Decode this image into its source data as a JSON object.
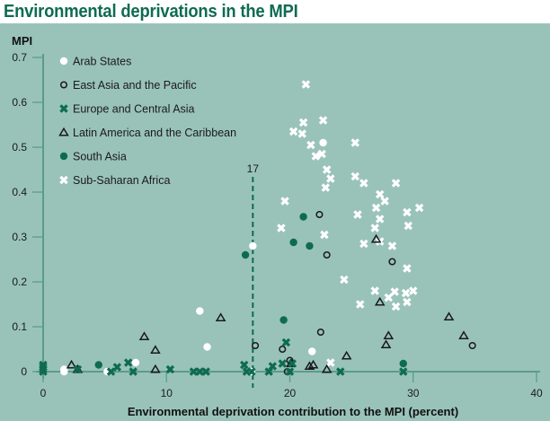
{
  "chart_data": {
    "type": "scatter",
    "title": "Environmental deprivations in the MPI",
    "xlabel": "Environmental deprivation contribution to the MPI (percent)",
    "ylabel": "MPI",
    "xlim": [
      0,
      40
    ],
    "ylim": [
      0,
      0.7
    ],
    "xticks": [
      "0",
      "10",
      "20",
      "30",
      "40"
    ],
    "xtick_values": [
      0,
      10,
      20,
      30,
      40
    ],
    "yticks": [
      "0",
      "0.1",
      "0.2",
      "0.3",
      "0.4",
      "0.5",
      "0.6",
      "0.7"
    ],
    "ytick_values": [
      0,
      0.1,
      0.2,
      0.3,
      0.4,
      0.5,
      0.6,
      0.7
    ],
    "grid": false,
    "legend_position": "top-left",
    "reference_line": {
      "x": 17,
      "label": "17",
      "style": "dashed"
    },
    "colors": {
      "panel": "#99c3b9",
      "axis": "#5c9c89",
      "green": "#0e6b52",
      "white": "#ffffff",
      "dark": "#1a1a1a",
      "title": "#0e6b52"
    },
    "series": [
      {
        "name": "Arab States",
        "marker": "filled-circle-white",
        "points": [
          [
            1.7,
            0.0
          ],
          [
            1.7,
            0.005
          ],
          [
            5.2,
            0.0
          ],
          [
            7.5,
            0.02
          ],
          [
            12.7,
            0.135
          ],
          [
            13.3,
            0.055
          ],
          [
            17.0,
            0.28
          ],
          [
            16.9,
            0.0
          ],
          [
            21.8,
            0.045
          ],
          [
            22.7,
            0.51
          ]
        ]
      },
      {
        "name": "East Asia and the Pacific",
        "marker": "open-circle",
        "points": [
          [
            17.2,
            0.058
          ],
          [
            19.4,
            0.05
          ],
          [
            19.8,
            0.0
          ],
          [
            20.0,
            0.025
          ],
          [
            22.5,
            0.088
          ],
          [
            22.4,
            0.35
          ],
          [
            23.0,
            0.26
          ],
          [
            28.3,
            0.245
          ],
          [
            34.8,
            0.058
          ]
        ]
      },
      {
        "name": "Europe and Central Asia",
        "marker": "x-green",
        "points": [
          [
            0.0,
            0.0
          ],
          [
            0.0,
            0.005
          ],
          [
            0.0,
            0.01
          ],
          [
            0.0,
            0.015
          ],
          [
            2.8,
            0.005
          ],
          [
            6.0,
            0.01
          ],
          [
            5.5,
            0.0
          ],
          [
            6.9,
            0.02
          ],
          [
            7.3,
            0.0
          ],
          [
            10.3,
            0.005
          ],
          [
            12.2,
            0.0
          ],
          [
            12.7,
            0.0
          ],
          [
            13.2,
            0.0
          ],
          [
            16.3,
            0.015
          ],
          [
            16.5,
            0.0
          ],
          [
            16.9,
            0.0
          ],
          [
            18.6,
            0.012
          ],
          [
            18.3,
            0.0
          ],
          [
            19.7,
            0.065
          ],
          [
            20.0,
            0.0
          ],
          [
            19.4,
            0.018
          ],
          [
            20.2,
            0.018
          ],
          [
            24.1,
            0.0
          ],
          [
            29.2,
            0.0
          ]
        ]
      },
      {
        "name": "Latin America and the Caribbean",
        "marker": "open-triangle",
        "points": [
          [
            2.3,
            0.015
          ],
          [
            2.8,
            0.005
          ],
          [
            8.2,
            0.078
          ],
          [
            9.1,
            0.048
          ],
          [
            9.1,
            0.005
          ],
          [
            14.4,
            0.12
          ],
          [
            20.1,
            0.018
          ],
          [
            21.6,
            0.012
          ],
          [
            21.9,
            0.015
          ],
          [
            23.0,
            0.005
          ],
          [
            24.6,
            0.035
          ],
          [
            27.0,
            0.295
          ],
          [
            27.3,
            0.155
          ],
          [
            27.8,
            0.06
          ],
          [
            28.0,
            0.08
          ],
          [
            32.9,
            0.122
          ],
          [
            34.1,
            0.08
          ]
        ]
      },
      {
        "name": "South Asia",
        "marker": "filled-circle-green",
        "points": [
          [
            4.5,
            0.015
          ],
          [
            16.4,
            0.26
          ],
          [
            19.5,
            0.115
          ],
          [
            20.3,
            0.288
          ],
          [
            21.1,
            0.345
          ],
          [
            21.6,
            0.28
          ],
          [
            29.2,
            0.018
          ]
        ]
      },
      {
        "name": "Sub-Saharan Africa",
        "marker": "x-white",
        "points": [
          [
            21.3,
            0.64
          ],
          [
            21.1,
            0.555
          ],
          [
            22.7,
            0.56
          ],
          [
            20.3,
            0.535
          ],
          [
            21.0,
            0.53
          ],
          [
            21.7,
            0.505
          ],
          [
            22.6,
            0.485
          ],
          [
            22.1,
            0.48
          ],
          [
            25.3,
            0.51
          ],
          [
            23.0,
            0.45
          ],
          [
            23.3,
            0.43
          ],
          [
            25.3,
            0.435
          ],
          [
            22.9,
            0.41
          ],
          [
            26.0,
            0.42
          ],
          [
            27.3,
            0.395
          ],
          [
            27.7,
            0.38
          ],
          [
            28.6,
            0.42
          ],
          [
            25.5,
            0.35
          ],
          [
            29.5,
            0.355
          ],
          [
            19.6,
            0.38
          ],
          [
            27.0,
            0.365
          ],
          [
            27.3,
            0.34
          ],
          [
            19.3,
            0.32
          ],
          [
            26.9,
            0.32
          ],
          [
            29.6,
            0.325
          ],
          [
            22.8,
            0.305
          ],
          [
            26.0,
            0.285
          ],
          [
            27.3,
            0.29
          ],
          [
            28.3,
            0.28
          ],
          [
            30.5,
            0.365
          ],
          [
            24.4,
            0.205
          ],
          [
            26.9,
            0.18
          ],
          [
            25.7,
            0.15
          ],
          [
            28.5,
            0.178
          ],
          [
            29.5,
            0.23
          ],
          [
            29.4,
            0.175
          ],
          [
            30.0,
            0.18
          ],
          [
            29.5,
            0.155
          ],
          [
            28.0,
            0.165
          ],
          [
            28.6,
            0.145
          ],
          [
            23.3,
            0.02
          ]
        ]
      }
    ]
  }
}
